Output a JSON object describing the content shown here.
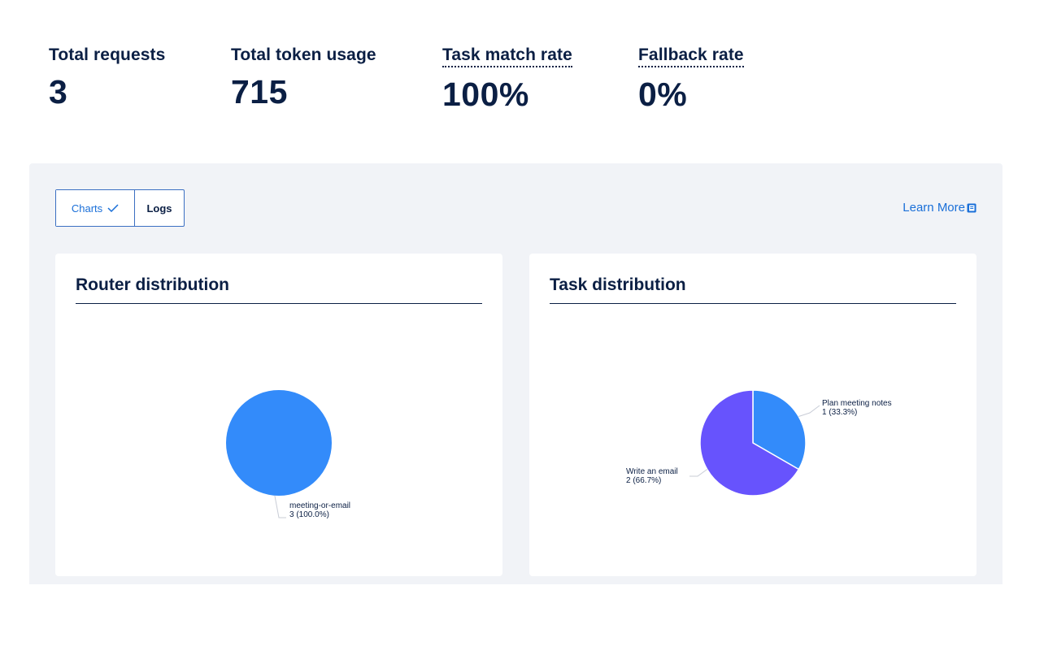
{
  "stats": [
    {
      "label": "Total requests",
      "value": "3",
      "dotted": false
    },
    {
      "label": "Total token usage",
      "value": "715",
      "dotted": false
    },
    {
      "label": "Task match rate",
      "value": "100%",
      "dotted": true
    },
    {
      "label": "Fallback rate",
      "value": "0%",
      "dotted": true
    }
  ],
  "toggle": {
    "charts_label": "Charts",
    "logs_label": "Logs",
    "selected": "Charts"
  },
  "learn_more_label": "Learn More",
  "colors": {
    "blue": "#338bfa",
    "purple": "#6753fd",
    "accent": "#1a6fd8",
    "navy": "#0b1f44"
  },
  "cards": {
    "router_title": "Router distribution",
    "task_title": "Task distribution"
  },
  "chart_data": [
    {
      "type": "pie",
      "title": "Router distribution",
      "slices": [
        {
          "label": "meeting-or-email",
          "value": 3,
          "display": "3 (100.0%)",
          "color": "#338bfa"
        }
      ]
    },
    {
      "type": "pie",
      "title": "Task distribution",
      "slices": [
        {
          "label": "Plan meeting notes",
          "value": 1,
          "display": "1 (33.3%)",
          "color": "#338bfa"
        },
        {
          "label": "Write an email",
          "value": 2,
          "display": "2 (66.7%)",
          "color": "#6753fd"
        }
      ]
    }
  ]
}
